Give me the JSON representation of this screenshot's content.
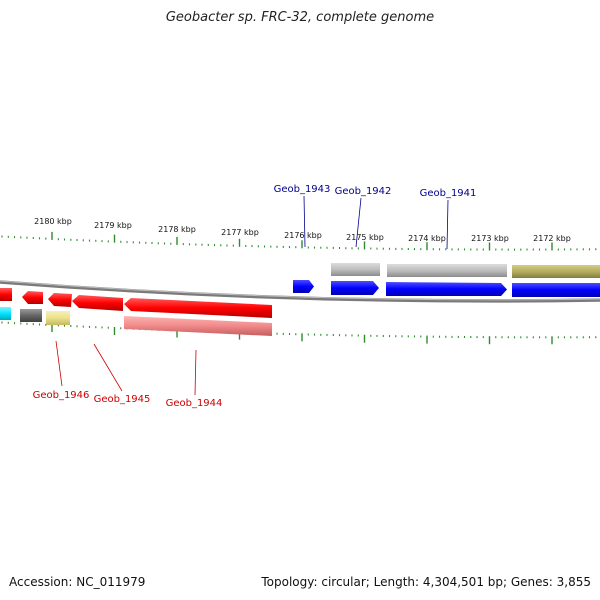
{
  "title": "Geobacter sp. FRC-32, complete genome",
  "footer": {
    "accession": "Accession: NC_011979",
    "stats": "Topology: circular; Length: 4,304,501 bp; Genes: 3,855"
  },
  "ruler": {
    "labels": [
      "2180 kbp",
      "2179 kbp",
      "2178 kbp",
      "2177 kbp",
      "2176 kbp",
      "2175 kbp",
      "2174 kbp",
      "2173 kbp",
      "2172 kbp"
    ],
    "color": "#2e8b2e"
  },
  "genes": [
    {
      "name": "Geob_1941",
      "strand": "+",
      "color": "#0000ff"
    },
    {
      "name": "Geob_1942",
      "strand": "+",
      "color": "#0000ff"
    },
    {
      "name": "Geob_1943",
      "strand": "+",
      "color": "#0000ff"
    },
    {
      "name": "Geob_1944",
      "strand": "-",
      "color": "#ff0000"
    },
    {
      "name": "Geob_1945",
      "strand": "-",
      "color": "#ff0000"
    },
    {
      "name": "Geob_1946",
      "strand": "-",
      "color": "#ff0000"
    }
  ],
  "colors": {
    "forward": "#0000ff",
    "reverse": "#ff0000",
    "backbone": "#888888",
    "cog_gray": "#b8b8b8",
    "cog_olive": "#b5ad5f",
    "cog_pink": "#f08a8a",
    "cog_cyan": "#00e5ff",
    "cog_darkgray": "#666666",
    "cog_yellow": "#ece18c"
  }
}
